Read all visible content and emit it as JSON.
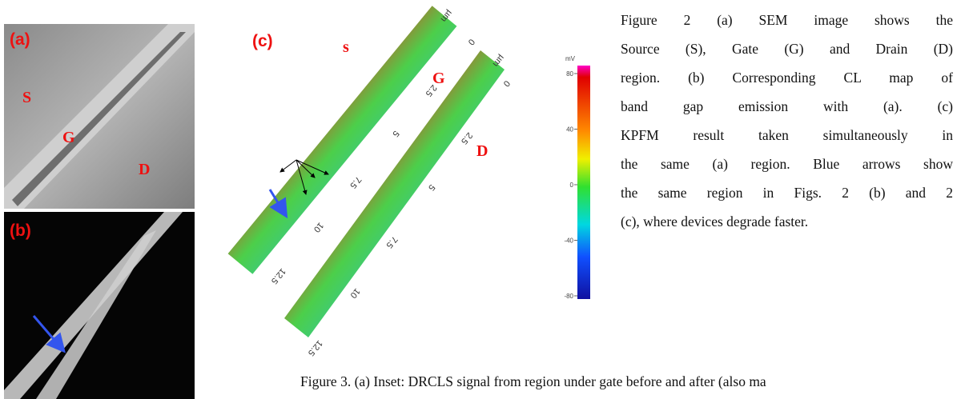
{
  "panel_a": {
    "label": "(a)",
    "regions": [
      "S",
      "G",
      "D"
    ]
  },
  "panel_b": {
    "label": "(b)"
  },
  "panel_c": {
    "label": "(c)",
    "regions": [
      "s",
      "G",
      "D"
    ],
    "axis_unit": "µm",
    "strip_1_ticks": [
      "0",
      "2.5",
      "5",
      "7.5",
      "10",
      "12.5"
    ],
    "strip_2_ticks": [
      "0",
      "2.5",
      "5",
      "7.5",
      "10",
      "12.5"
    ]
  },
  "colorbar": {
    "unit": "mV",
    "ticks": [
      "80",
      "40",
      "0",
      "-40",
      "-80"
    ]
  },
  "caption_fig2": {
    "lines": [
      "Figure 2 (a) SEM image shows the",
      "Source (S), Gate (G) and Drain (D)",
      "region.   (b) Corresponding CL map of",
      "band gap emission with (a).      (c)",
      "KPFM result taken simultaneously in",
      "the same (a) region. Blue arrows show",
      "the same region in Figs. 2 (b) and 2",
      "(c), where devices degrade faster."
    ]
  },
  "caption_fig3": "Figure 3. (a) Inset: DRCLS signal from region under gate before and after (also ma"
}
